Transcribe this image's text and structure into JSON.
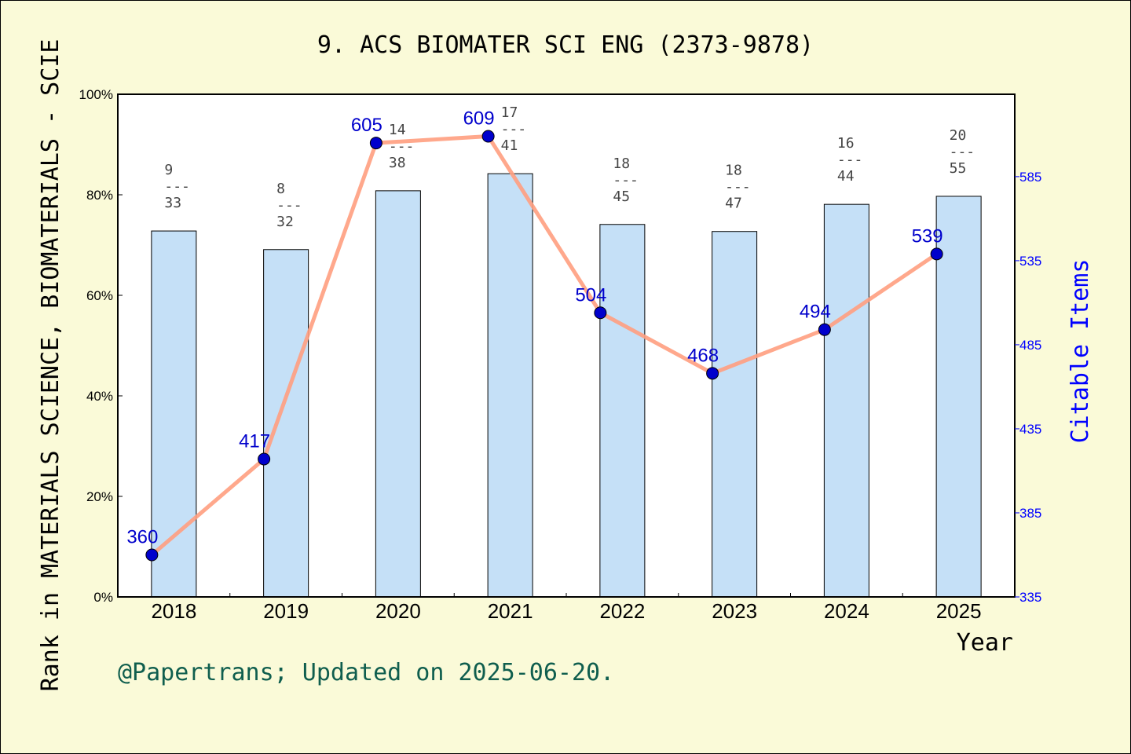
{
  "chart_data": {
    "type": "bar+line",
    "title": "9. ACS BIOMATER SCI ENG (2373-9878)",
    "xlabel": "Year",
    "ylabel": "Rank in MATERIALS SCIENCE, BIOMATERIALS - SCIE",
    "y2label": "Citable Items",
    "categories": [
      "2018",
      "2019",
      "2020",
      "2021",
      "2022",
      "2023",
      "2024",
      "2025"
    ],
    "ylim": [
      0,
      100
    ],
    "yticks": [
      "0%",
      "20%",
      "40%",
      "60%",
      "80%",
      "100%"
    ],
    "y2lim": [
      335,
      634
    ],
    "y2ticks": [
      335,
      385,
      435,
      485,
      535,
      585
    ],
    "bar_series": {
      "values": [
        72.8,
        69.1,
        80.8,
        84.2,
        74.1,
        72.7,
        78.1,
        79.7
      ],
      "rank": [
        "9",
        "8",
        "14",
        "17",
        "18",
        "18",
        "16",
        "20"
      ],
      "total": [
        "33",
        "32",
        "38",
        "41",
        "45",
        "47",
        "44",
        "55"
      ]
    },
    "line_series": {
      "values": [
        360,
        417,
        605,
        609,
        504,
        468,
        494,
        539
      ],
      "labels": [
        "360",
        "417",
        "605",
        "609",
        "504",
        "468",
        "494",
        "539"
      ]
    },
    "grid": false,
    "colors": {
      "bar": "#c5e0f7",
      "line": "#ff9f7f",
      "marker": "#0000cc",
      "right_axis": "#0000ff",
      "footer": "#0f5e4e",
      "background": "#fafad8"
    }
  },
  "footer": "@Papertrans; Updated on 2025-06-20."
}
